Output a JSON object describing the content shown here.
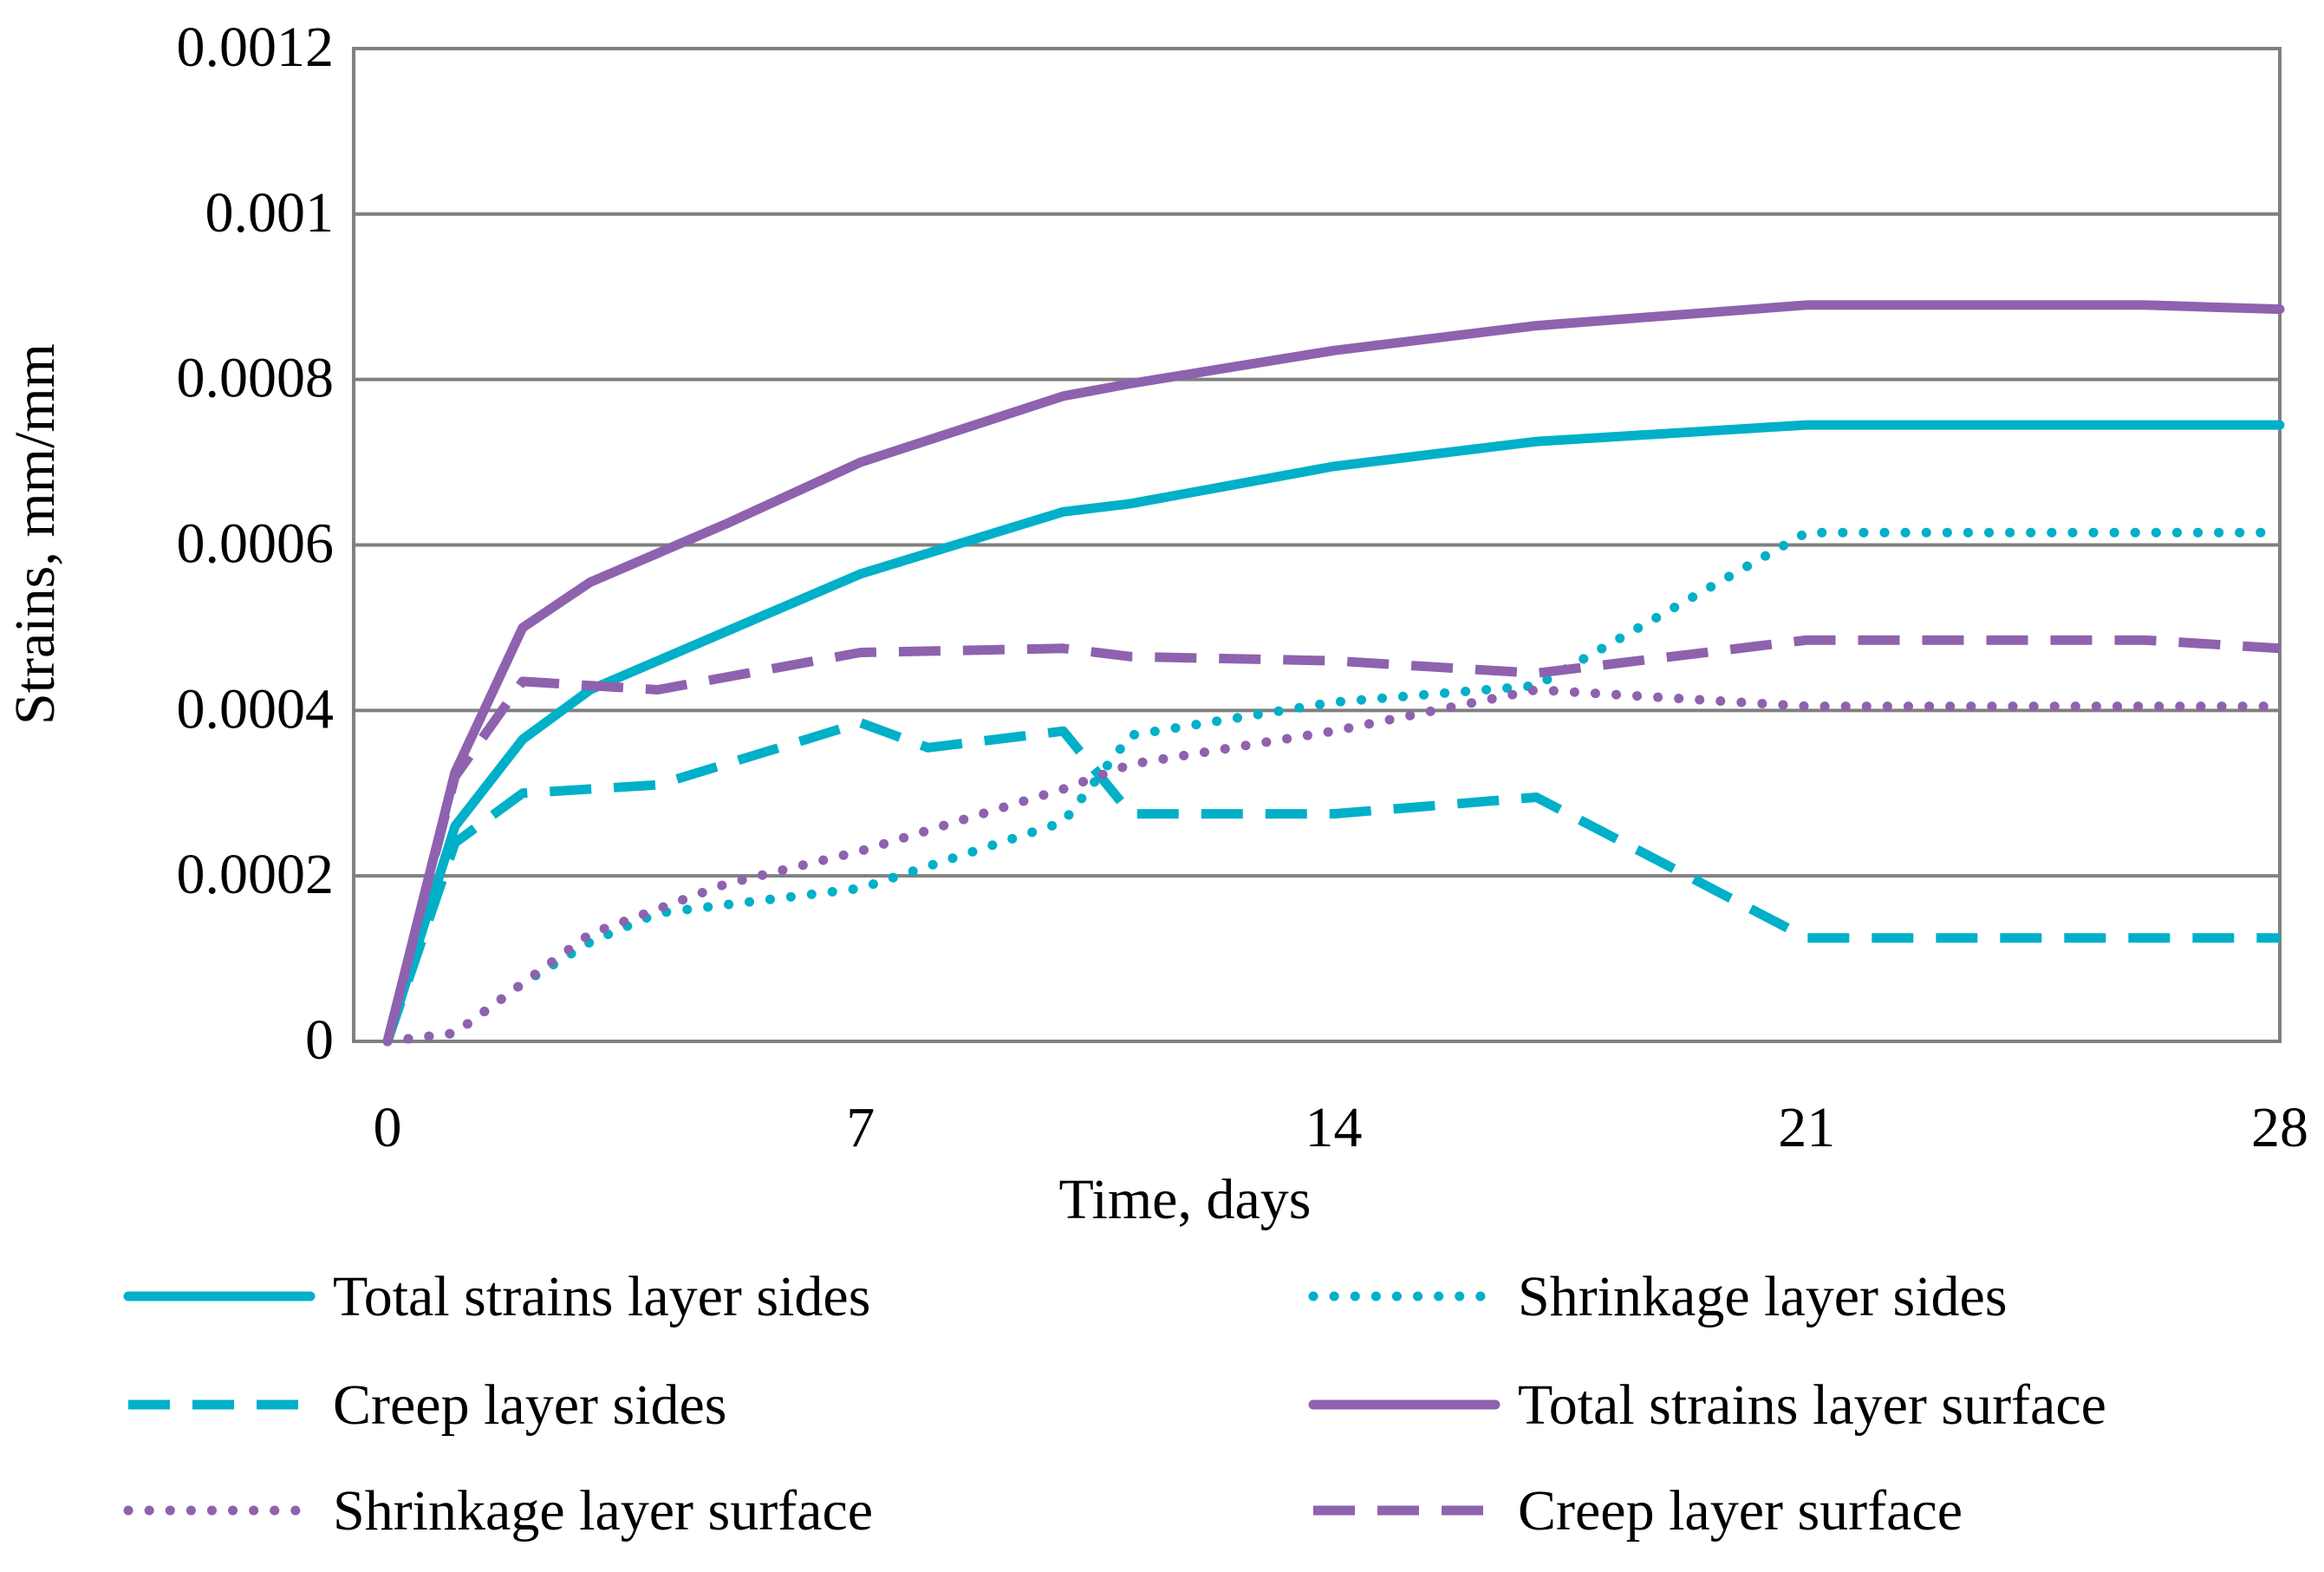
{
  "chart_data": {
    "type": "line",
    "xlabel": "Time, days",
    "ylabel": "Strains, mm/mm",
    "xlim": [
      -0.5,
      28
    ],
    "ylim": [
      0,
      0.0012
    ],
    "xticks": [
      0,
      7,
      14,
      21,
      28
    ],
    "xtick_labels": [
      "0",
      "7",
      "14",
      "21",
      "28"
    ],
    "yticks": [
      0,
      0.0002,
      0.0004,
      0.0006,
      0.0008,
      0.001,
      0.0012
    ],
    "ytick_labels": [
      "0",
      "0.0002",
      "0.0004",
      "0.0006",
      "0.0008",
      "0.001",
      "0.0012"
    ],
    "grid": "horizontal",
    "legend": "bottom",
    "series": [
      {
        "name": "Total strains layer sides",
        "color": "#00B0C8",
        "style": "solid",
        "x": [
          0,
          1,
          2,
          3,
          5,
          7,
          10,
          11,
          14,
          17,
          21,
          26,
          28
        ],
        "y": [
          0,
          0.00026,
          0.000365,
          0.000425,
          0.000495,
          0.000565,
          0.00064,
          0.00065,
          0.000695,
          0.000725,
          0.000745,
          0.000745,
          0.000745
        ]
      },
      {
        "name": "Shrinkage layer sides",
        "color": "#00B0C8",
        "style": "dotted",
        "x": [
          0,
          1,
          2,
          3,
          4,
          7,
          10,
          11,
          14,
          17,
          21,
          28
        ],
        "y": [
          0,
          1e-05,
          7e-05,
          0.00012,
          0.000155,
          0.000185,
          0.000265,
          0.00037,
          0.00041,
          0.00043,
          0.000615,
          0.000615
        ]
      },
      {
        "name": "Creep layer sides",
        "color": "#00B0C8",
        "style": "dashed",
        "x": [
          0,
          1,
          2,
          4,
          7,
          8,
          10,
          11,
          14,
          17,
          21,
          28
        ],
        "y": [
          0,
          0.00024,
          0.0003,
          0.00031,
          0.000385,
          0.000355,
          0.000375,
          0.000275,
          0.000275,
          0.000295,
          0.000125,
          0.000125
        ]
      },
      {
        "name": "Total strains layer surface",
        "color": "#8E62AE",
        "style": "solid",
        "x": [
          0,
          1,
          2,
          3,
          5,
          7,
          10,
          11,
          14,
          17,
          21,
          26,
          28
        ],
        "y": [
          0,
          0.000325,
          0.0005,
          0.000555,
          0.000625,
          0.0007,
          0.00078,
          0.000795,
          0.000835,
          0.000865,
          0.00089,
          0.00089,
          0.000885
        ]
      },
      {
        "name": "Shrinkage layer surface",
        "color": "#8E62AE",
        "style": "dotted",
        "x": [
          0,
          1,
          2,
          3,
          5,
          7,
          10,
          11,
          14,
          17,
          21,
          28
        ],
        "y": [
          0,
          1e-05,
          7e-05,
          0.00013,
          0.00019,
          0.00023,
          0.000305,
          0.000335,
          0.000375,
          0.000425,
          0.000405,
          0.000405
        ]
      },
      {
        "name": "Creep layer surface",
        "color": "#8E62AE",
        "style": "dashed",
        "x": [
          0,
          1,
          2,
          4,
          7,
          10,
          11,
          14,
          17,
          21,
          26,
          28
        ],
        "y": [
          0,
          0.00032,
          0.000435,
          0.000425,
          0.00047,
          0.000475,
          0.000465,
          0.00046,
          0.000445,
          0.000485,
          0.000485,
          0.000475
        ]
      }
    ]
  }
}
